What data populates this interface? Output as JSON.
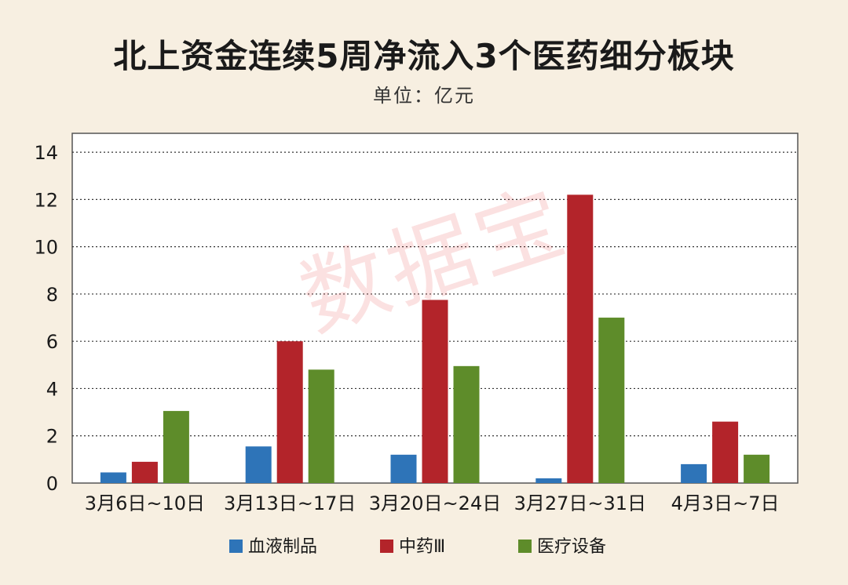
{
  "title": "北上资金连续5周净流入3个医药细分板块",
  "unit": "单位：亿元",
  "watermark": "数据宝",
  "chart_data": {
    "type": "bar",
    "categories": [
      "3月6日~10日",
      "3月13日~17日",
      "3月20日~24日",
      "3月27日~31日",
      "4月3日~7日"
    ],
    "series": [
      {
        "name": "血液制品",
        "color": "#2e74b8",
        "values": [
          0.45,
          1.55,
          1.2,
          0.2,
          0.8
        ]
      },
      {
        "name": "中药Ⅲ",
        "color": "#b3242a",
        "values": [
          0.9,
          6.0,
          7.75,
          12.2,
          2.6
        ]
      },
      {
        "name": "医疗设备",
        "color": "#5e8c2a",
        "values": [
          3.05,
          4.8,
          4.95,
          7.0,
          1.2
        ]
      }
    ],
    "yticks": [
      0,
      2,
      4,
      6,
      8,
      10,
      12,
      14
    ],
    "ylim": [
      0,
      14.8
    ],
    "grid": true,
    "legend": "bottom"
  }
}
